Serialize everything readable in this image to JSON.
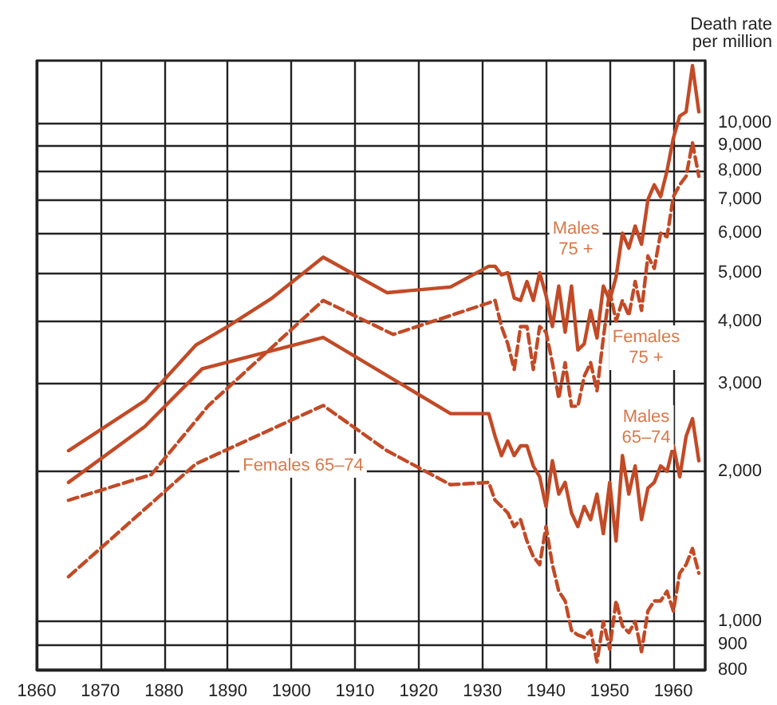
{
  "chart_data": {
    "type": "line",
    "ylabel": "Death rate\nper million",
    "log": "y",
    "grid": true,
    "marker": "none",
    "xlim": [
      1860,
      1965
    ],
    "xticks": [
      1860,
      1870,
      1880,
      1890,
      1900,
      1910,
      1920,
      1930,
      1940,
      1950,
      1960
    ],
    "ylim": [
      800,
      13300
    ],
    "yticks": [
      {
        "value": 800,
        "label": "800"
      },
      {
        "value": 900,
        "label": "900"
      },
      {
        "value": 1000,
        "label": "1,000"
      },
      {
        "value": 2000,
        "label": "2,000"
      },
      {
        "value": 3000,
        "label": "3,000"
      },
      {
        "value": 4000,
        "label": "4,000"
      },
      {
        "value": 5000,
        "label": "5,000"
      },
      {
        "value": 6000,
        "label": "6,000"
      },
      {
        "value": 7000,
        "label": "7,000"
      },
      {
        "value": 8000,
        "label": "8,000"
      },
      {
        "value": 9000,
        "label": "9,000"
      },
      {
        "value": 10000,
        "label": "10,000"
      }
    ],
    "series": [
      {
        "color": "#c24a26",
        "line_style": "solid",
        "x": [
          1865,
          1877,
          1885,
          1890,
          1897,
          1905,
          1915,
          1925,
          1931,
          1932,
          1933,
          1934,
          1935,
          1936,
          1937,
          1938,
          1939,
          1940,
          1941,
          1942,
          1943,
          1944,
          1945,
          1946,
          1947,
          1948,
          1949,
          1950,
          1951,
          1952,
          1953,
          1954,
          1955,
          1956,
          1957,
          1958,
          1959,
          1960,
          1961,
          1962,
          1963,
          1964
        ],
        "values": [
          2200,
          2770,
          3580,
          3900,
          4450,
          5370,
          4560,
          4680,
          5150,
          5150,
          4950,
          5000,
          4450,
          4400,
          4800,
          4400,
          5000,
          4500,
          3900,
          4700,
          3800,
          4700,
          3500,
          3600,
          4200,
          3700,
          4700,
          4400,
          4900,
          6000,
          5600,
          6200,
          5700,
          7000,
          7500,
          7100,
          8000,
          9300,
          10300,
          10500,
          13000,
          10500
        ]
      },
      {
        "color": "#c24a26",
        "line_style": "solid",
        "x": [
          1865,
          1877,
          1886,
          1905,
          1925,
          1931,
          1932,
          1933,
          1934,
          1935,
          1936,
          1937,
          1938,
          1939,
          1940,
          1941,
          1942,
          1943,
          1944,
          1945,
          1946,
          1947,
          1948,
          1949,
          1950,
          1951,
          1952,
          1953,
          1954,
          1955,
          1956,
          1957,
          1958,
          1959,
          1960,
          1961,
          1962,
          1963,
          1964
        ],
        "values": [
          1900,
          2460,
          3210,
          3710,
          2610,
          2610,
          2350,
          2150,
          2300,
          2150,
          2250,
          2250,
          2050,
          1950,
          1700,
          2100,
          1800,
          1900,
          1650,
          1550,
          1700,
          1600,
          1800,
          1500,
          1900,
          1450,
          2150,
          1800,
          2050,
          1600,
          1850,
          1900,
          2050,
          2000,
          2250,
          1950,
          2350,
          2550,
          2100
        ]
      },
      {
        "color": "#c24a26",
        "line_style": "dashed",
        "x": [
          1865,
          1878,
          1887,
          1905,
          1916,
          1931,
          1932,
          1933,
          1934,
          1935,
          1936,
          1937,
          1938,
          1939,
          1940,
          1941,
          1942,
          1943,
          1944,
          1945,
          1946,
          1947,
          1948,
          1949,
          1950,
          1951,
          1952,
          1953,
          1954,
          1955,
          1956,
          1957,
          1958,
          1959,
          1960,
          1961,
          1962,
          1963,
          1964
        ],
        "values": [
          1750,
          1970,
          2710,
          4400,
          3760,
          4350,
          4400,
          3900,
          3600,
          3200,
          3900,
          3900,
          3200,
          3900,
          3800,
          3300,
          2800,
          3300,
          2700,
          2700,
          3100,
          3300,
          2900,
          3700,
          4600,
          4000,
          4400,
          4100,
          4800,
          4200,
          5400,
          5100,
          6000,
          5900,
          7100,
          7500,
          7800,
          9100,
          7800
        ]
      },
      {
        "color": "#c24a26",
        "line_style": "dashed",
        "x": [
          1865,
          1885,
          1905,
          1915,
          1925,
          1931,
          1932,
          1933,
          1934,
          1935,
          1936,
          1937,
          1938,
          1939,
          1940,
          1941,
          1942,
          1943,
          1944,
          1945,
          1946,
          1947,
          1948,
          1949,
          1950,
          1951,
          1952,
          1953,
          1954,
          1955,
          1956,
          1957,
          1958,
          1959,
          1960,
          1961,
          1962,
          1963,
          1964
        ],
        "values": [
          1230,
          2070,
          2710,
          2200,
          1880,
          1900,
          1750,
          1700,
          1650,
          1550,
          1600,
          1450,
          1350,
          1300,
          1550,
          1300,
          1150,
          1100,
          960,
          940,
          930,
          960,
          830,
          1000,
          880,
          1100,
          980,
          950,
          1000,
          870,
          1050,
          1100,
          1100,
          1150,
          1050,
          1250,
          1300,
          1400,
          1250
        ]
      }
    ],
    "annotations": [
      "Males\n75 +",
      "Females\n75 +",
      "Males\n65–74",
      "Females 65–74"
    ]
  }
}
